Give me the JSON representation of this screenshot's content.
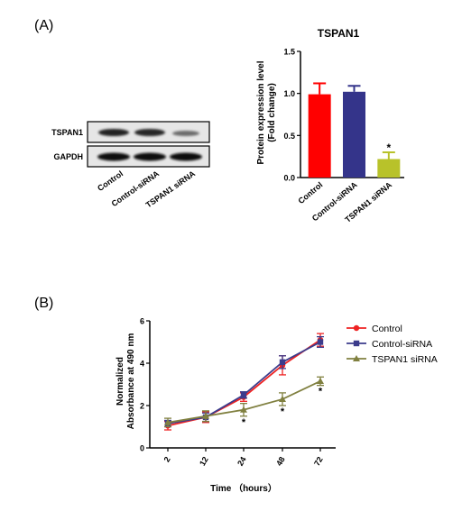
{
  "panels": {
    "a": "(A)",
    "b": "(B)"
  },
  "blot": {
    "bands": [
      "TSPAN1",
      "GAPDH"
    ],
    "lanes": [
      "Control",
      "Control-siRNA",
      "TSPAN1 siRNA"
    ]
  },
  "chart_data": [
    {
      "type": "bar",
      "title": "TSPAN1",
      "ylabel_lines": [
        "Protein expression level",
        "(Fold change)"
      ],
      "categories": [
        "Control",
        "Control-siRNA",
        "TSPAN1 siRNA"
      ],
      "values": [
        0.99,
        1.02,
        0.22
      ],
      "errors": [
        0.13,
        0.07,
        0.08
      ],
      "colors": [
        "#ff0000",
        "#34348a",
        "#b8c22a"
      ],
      "ylim": [
        0,
        1.5
      ],
      "yticks": [
        "0.0",
        "0.5",
        "1.0",
        "1.5"
      ],
      "significance": [
        "",
        "",
        "*"
      ]
    },
    {
      "type": "line",
      "xlabel": "Time （hours）",
      "ylabel_lines": [
        "Normalized",
        "Absorbance at 490 nm"
      ],
      "categories": [
        "2",
        "12",
        "24",
        "48",
        "72"
      ],
      "ylim": [
        0,
        6
      ],
      "yticks": [
        "0",
        "2",
        "4",
        "6"
      ],
      "series": [
        {
          "name": "Control",
          "color": "#ee2222",
          "marker": "circle",
          "values": [
            1.05,
            1.45,
            2.4,
            3.9,
            5.1
          ],
          "errors": [
            0.2,
            0.25,
            0.2,
            0.45,
            0.3
          ]
        },
        {
          "name": "Control-siRNA",
          "color": "#3c3c8c",
          "marker": "square",
          "values": [
            1.15,
            1.45,
            2.5,
            4.05,
            5.0
          ],
          "errors": [
            0.15,
            0.2,
            0.15,
            0.3,
            0.25
          ]
        },
        {
          "name": "TSPAN1 siRNA",
          "color": "#808040",
          "marker": "triangle",
          "values": [
            1.2,
            1.5,
            1.8,
            2.3,
            3.15
          ],
          "errors": [
            0.2,
            0.25,
            0.3,
            0.3,
            0.2
          ]
        }
      ],
      "significance": [
        "",
        "",
        "*",
        "*",
        "*"
      ]
    }
  ]
}
